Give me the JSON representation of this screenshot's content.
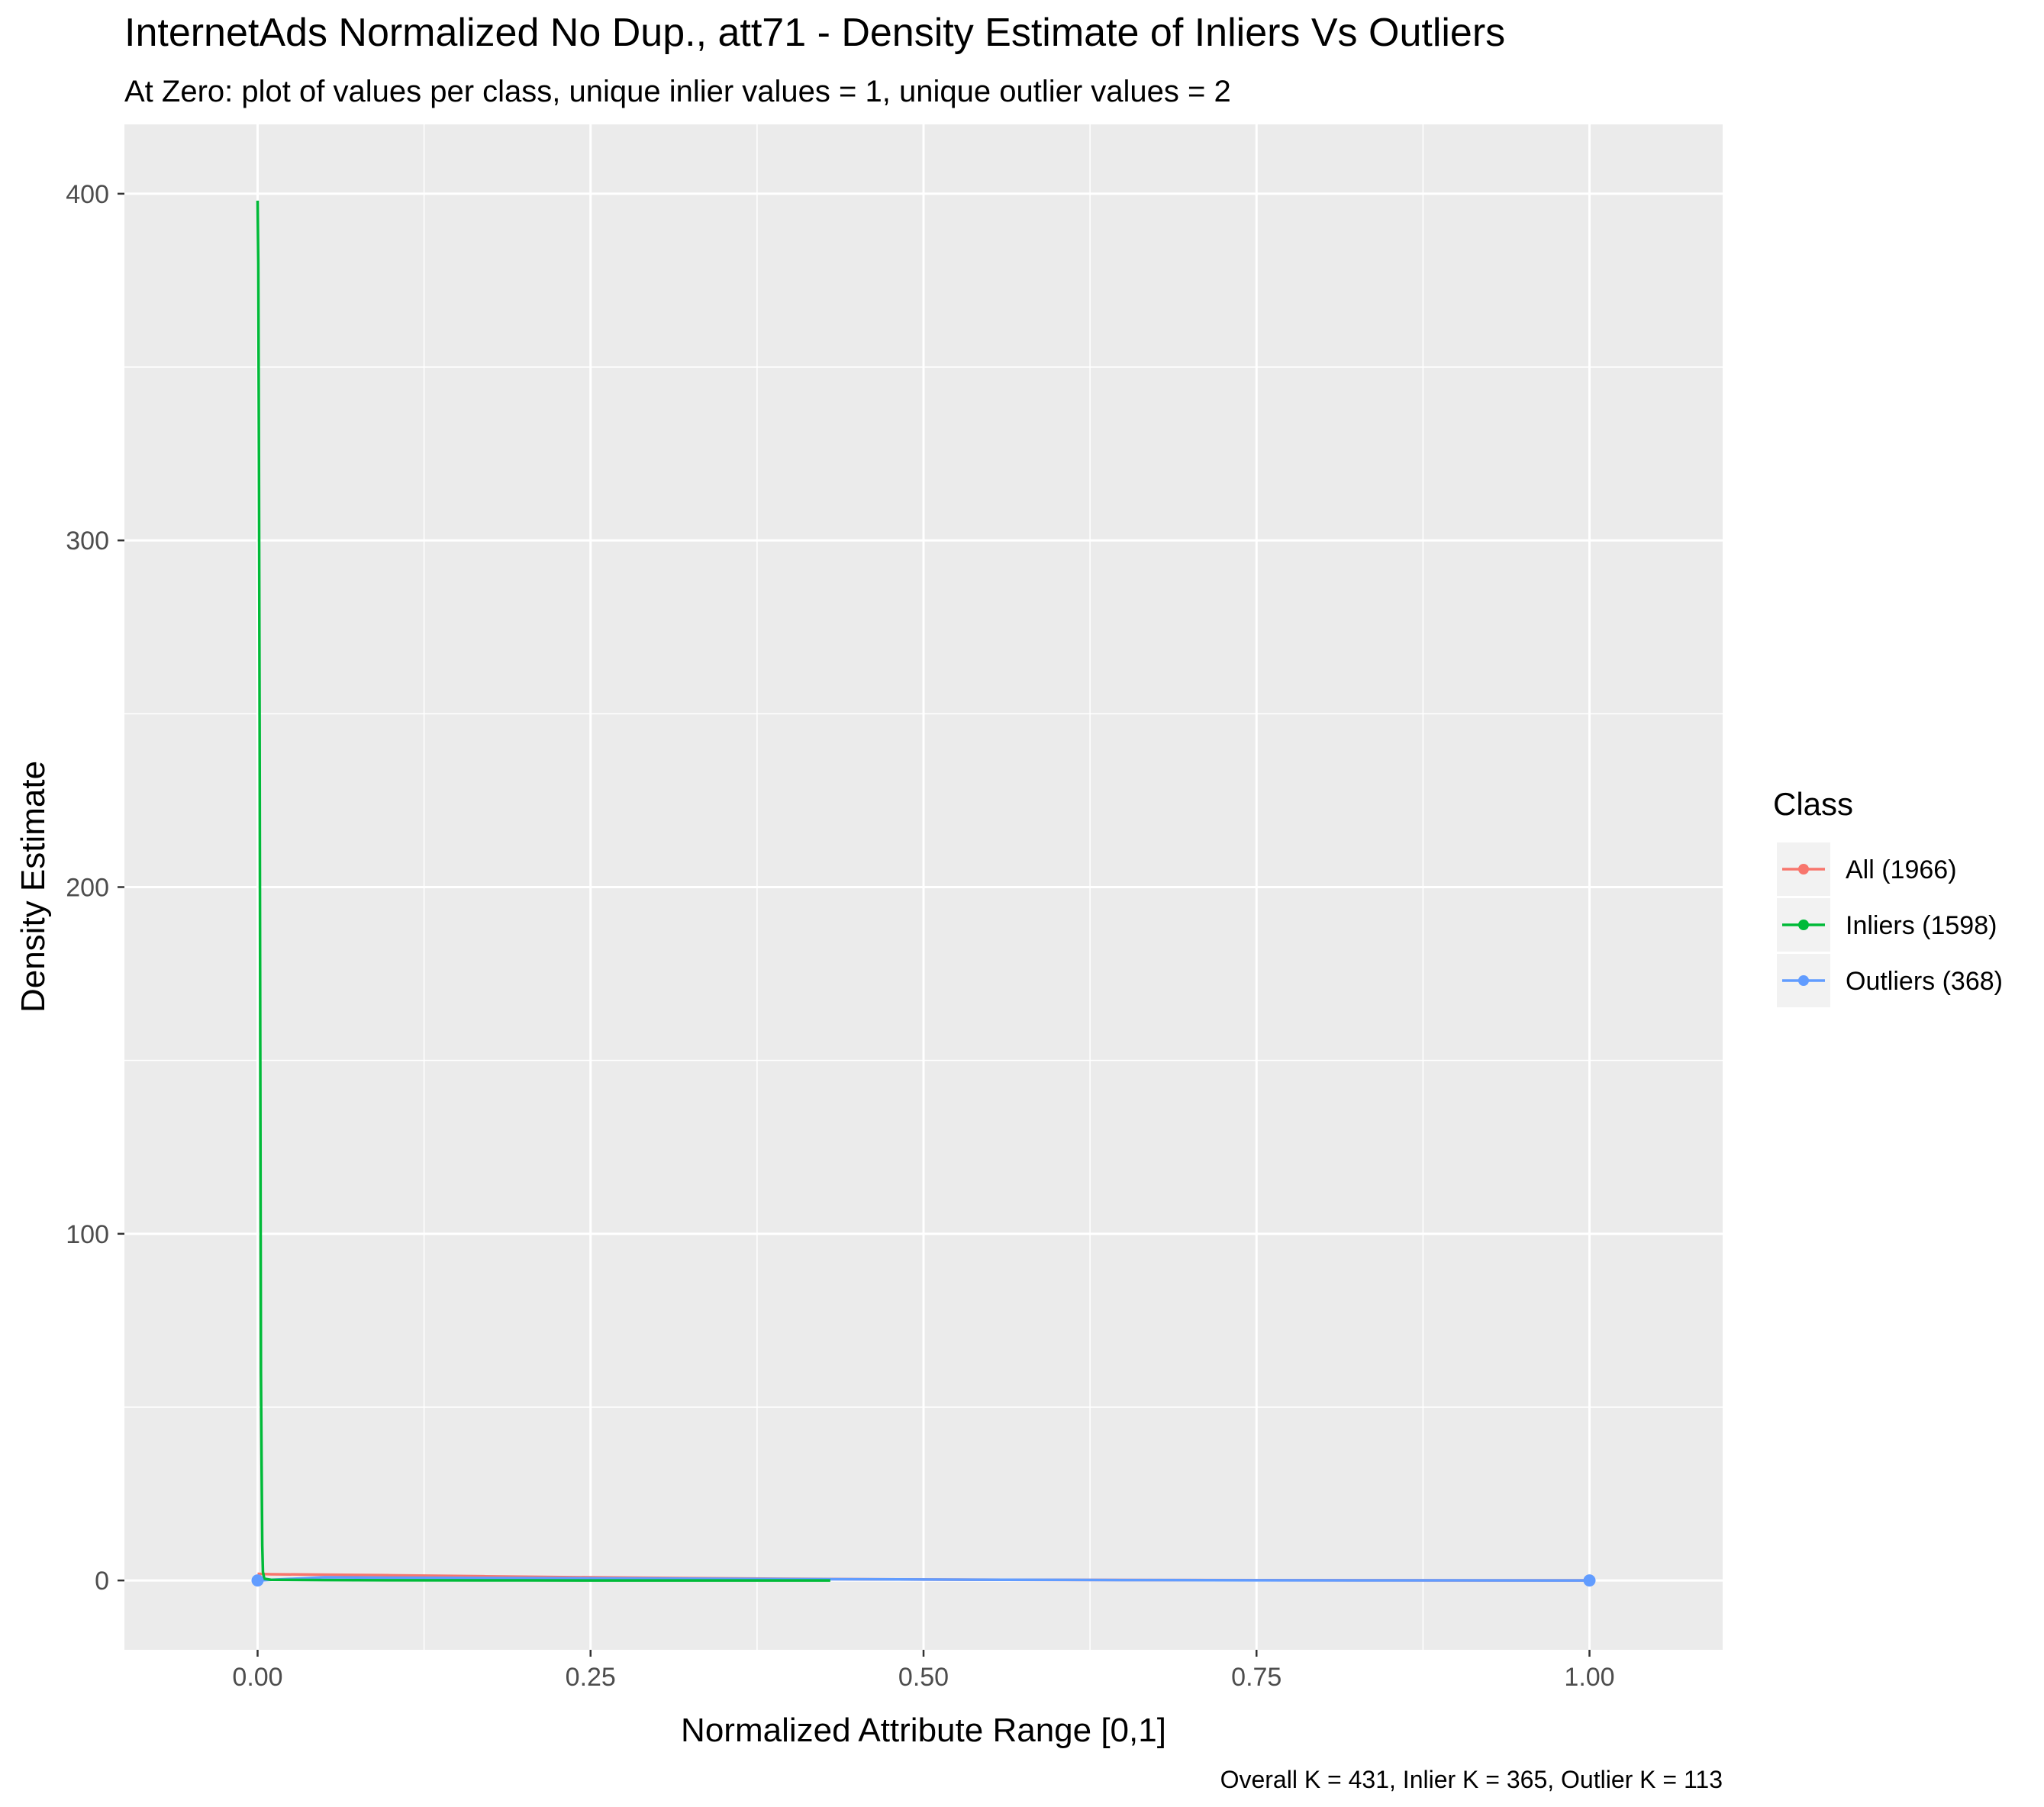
{
  "chart_data": {
    "type": "line",
    "title": "InternetAds Normalized No Dup., att71 - Density Estimate of Inliers Vs Outliers",
    "subtitle": "At Zero: plot of values per class, unique inlier values = 1, unique outlier values = 2",
    "xlabel": "Normalized Attribute Range [0,1]",
    "ylabel": "Density Estimate",
    "caption": "Overall K = 431, Inlier K = 365, Outlier K = 113",
    "xlim": [
      -0.1,
      1.1
    ],
    "ylim": [
      -20,
      420
    ],
    "x_ticks": [
      0,
      0.25,
      0.5,
      0.75,
      1
    ],
    "x_tick_labels": [
      "0.00",
      "0.25",
      "0.50",
      "0.75",
      "1.00"
    ],
    "y_ticks": [
      0,
      100,
      200,
      300,
      400
    ],
    "y_tick_labels": [
      "0",
      "100",
      "200",
      "300",
      "400"
    ],
    "grid": true,
    "legend": {
      "title": "Class",
      "position": "right",
      "entries": [
        {
          "label": "All (1966)",
          "color": "#F8766D"
        },
        {
          "label": "Inliers (1598)",
          "color": "#00BA38"
        },
        {
          "label": "Outliers (368)",
          "color": "#619CFF"
        }
      ]
    },
    "series": [
      {
        "name": "All (1966)",
        "color": "#F8766D",
        "x": [
          0,
          0.001,
          0.01,
          0.04,
          0.1,
          0.17,
          0.25,
          0.35,
          0.45,
          0.56,
          0.7,
          0.85,
          1.0
        ],
        "y": [
          1.9,
          1.9,
          1.8,
          1.7,
          1.5,
          1.2,
          0.9,
          0.6,
          0.35,
          0.2,
          0.1,
          0.05,
          0.02
        ]
      },
      {
        "name": "Inliers (1598)",
        "color": "#00BA38",
        "x": [
          0,
          0.0005,
          0.001,
          0.0015,
          0.002,
          0.0025,
          0.003,
          0.0035,
          0.004,
          0.005,
          0.01,
          0.05,
          0.1,
          0.2,
          0.3,
          0.43
        ],
        "y": [
          398,
          380,
          323,
          247,
          154,
          60,
          33,
          10,
          2.5,
          0.5,
          0.2,
          0.1,
          0.05,
          0.02,
          0.01,
          0
        ]
      },
      {
        "name": "Outliers (368)",
        "color": "#619CFF",
        "x": [
          0,
          0.05,
          0.1,
          0.15,
          0.2,
          0.3,
          0.4,
          0.5,
          0.56,
          0.65,
          0.75,
          0.85,
          1.0
        ],
        "y": [
          0,
          0.9,
          0.8,
          0.75,
          0.7,
          0.55,
          0.4,
          0.28,
          0.2,
          0.12,
          0.07,
          0.03,
          0
        ]
      }
    ],
    "points": [
      {
        "series": "Outliers (368)",
        "x": 0,
        "y": 0,
        "color": "#619CFF"
      },
      {
        "series": "Outliers (368)",
        "x": 1,
        "y": 0,
        "color": "#619CFF"
      }
    ]
  }
}
